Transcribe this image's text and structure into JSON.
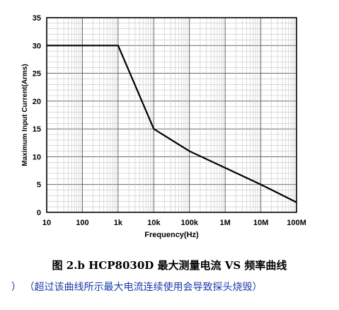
{
  "chart_data": {
    "type": "line",
    "xscale": "log",
    "xlim": [
      10,
      100000000
    ],
    "ylim": [
      0,
      35
    ],
    "xlabel": "Frequency(Hz)",
    "ylabel": "Maximum Input Current(Arms)",
    "x_ticks": [
      10,
      100,
      1000,
      10000,
      100000,
      1000000,
      10000000,
      100000000
    ],
    "x_tick_labels": [
      "10",
      "100",
      "1k",
      "10k",
      "100k",
      "1M",
      "10M",
      "100M"
    ],
    "y_ticks": [
      0,
      5,
      10,
      15,
      20,
      25,
      30,
      35
    ],
    "y_tick_labels": [
      "0",
      "5",
      "10",
      "15",
      "20",
      "25",
      "30",
      "35"
    ],
    "grid": true,
    "series": [
      {
        "x": [
          10,
          1000,
          10000,
          100000,
          1000000,
          10000000,
          100000000
        ],
        "y": [
          30,
          30,
          15,
          11,
          8,
          5,
          1.8
        ]
      }
    ]
  },
  "caption": "图 2.b HCP8030D 最大测量电流 VS 频率曲线",
  "note": {
    "paren_mark": "）",
    "text": "（超过该曲线所示最大电流连续使用会导致探头烧毁）",
    "color": "#1a3ca8"
  }
}
